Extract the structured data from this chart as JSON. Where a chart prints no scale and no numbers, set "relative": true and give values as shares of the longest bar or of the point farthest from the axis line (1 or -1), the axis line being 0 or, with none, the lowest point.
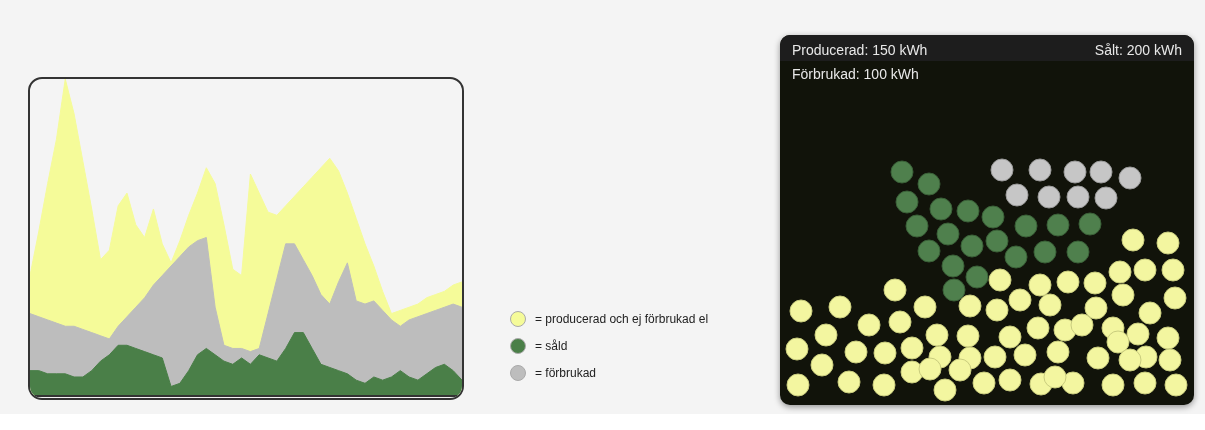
{
  "chart_data": [
    {
      "type": "area",
      "relative": true,
      "legend": "right",
      "categories": [
        null,
        null,
        null,
        null,
        null,
        null,
        null,
        null,
        null,
        null,
        null,
        null,
        null,
        null,
        null,
        null,
        null,
        null,
        null,
        null,
        null,
        null,
        null,
        null,
        null,
        null,
        null,
        null,
        null,
        null,
        null,
        null,
        null,
        null,
        null,
        null,
        null,
        null,
        null,
        null,
        null,
        null,
        null,
        null,
        null,
        null,
        null,
        null,
        null,
        null
      ],
      "series": [
        {
          "name": "= producerad och ej förbrukad el",
          "color": "#f5fb99",
          "values": [
            0.38,
            0.52,
            0.67,
            0.81,
            1.0,
            0.89,
            0.74,
            0.59,
            0.43,
            0.46,
            0.6,
            0.64,
            0.54,
            0.5,
            0.59,
            0.48,
            0.42,
            0.49,
            0.57,
            0.64,
            0.72,
            0.67,
            0.54,
            0.4,
            0.38,
            0.7,
            0.64,
            0.58,
            0.57,
            0.6,
            0.63,
            0.66,
            0.69,
            0.72,
            0.75,
            0.71,
            0.64,
            0.56,
            0.48,
            0.41,
            0.33,
            0.26,
            0.27,
            0.28,
            0.29,
            0.31,
            0.32,
            0.33,
            0.35,
            0.36
          ]
        },
        {
          "name": "= såld",
          "color": "#4a7f48",
          "values": [
            0.08,
            0.08,
            0.07,
            0.07,
            0.07,
            0.06,
            0.06,
            0.08,
            0.11,
            0.13,
            0.16,
            0.16,
            0.15,
            0.14,
            0.13,
            0.12,
            0.03,
            0.04,
            0.08,
            0.13,
            0.15,
            0.13,
            0.11,
            0.1,
            0.12,
            0.1,
            0.13,
            0.12,
            0.11,
            0.15,
            0.2,
            0.2,
            0.15,
            0.1,
            0.09,
            0.08,
            0.07,
            0.05,
            0.04,
            0.06,
            0.05,
            0.06,
            0.08,
            0.06,
            0.05,
            0.07,
            0.09,
            0.1,
            0.08,
            0.05
          ]
        },
        {
          "name": "= förbrukad",
          "color": "#bdbdbd",
          "values": [
            0.26,
            0.25,
            0.24,
            0.23,
            0.22,
            0.22,
            0.21,
            0.2,
            0.19,
            0.18,
            0.22,
            0.25,
            0.28,
            0.31,
            0.35,
            0.38,
            0.41,
            0.44,
            0.47,
            0.49,
            0.5,
            0.28,
            0.16,
            0.15,
            0.15,
            0.14,
            0.15,
            0.26,
            0.37,
            0.48,
            0.48,
            0.43,
            0.38,
            0.32,
            0.29,
            0.36,
            0.42,
            0.3,
            0.29,
            0.3,
            0.27,
            0.24,
            0.22,
            0.24,
            0.25,
            0.26,
            0.27,
            0.28,
            0.29,
            0.28
          ]
        }
      ]
    },
    {
      "type": "other",
      "annotations": [
        "Producerad: 150 kWh",
        "Sålt: 200 kWh",
        "Förbrukad: 100 kWh"
      ]
    }
  ]
}
